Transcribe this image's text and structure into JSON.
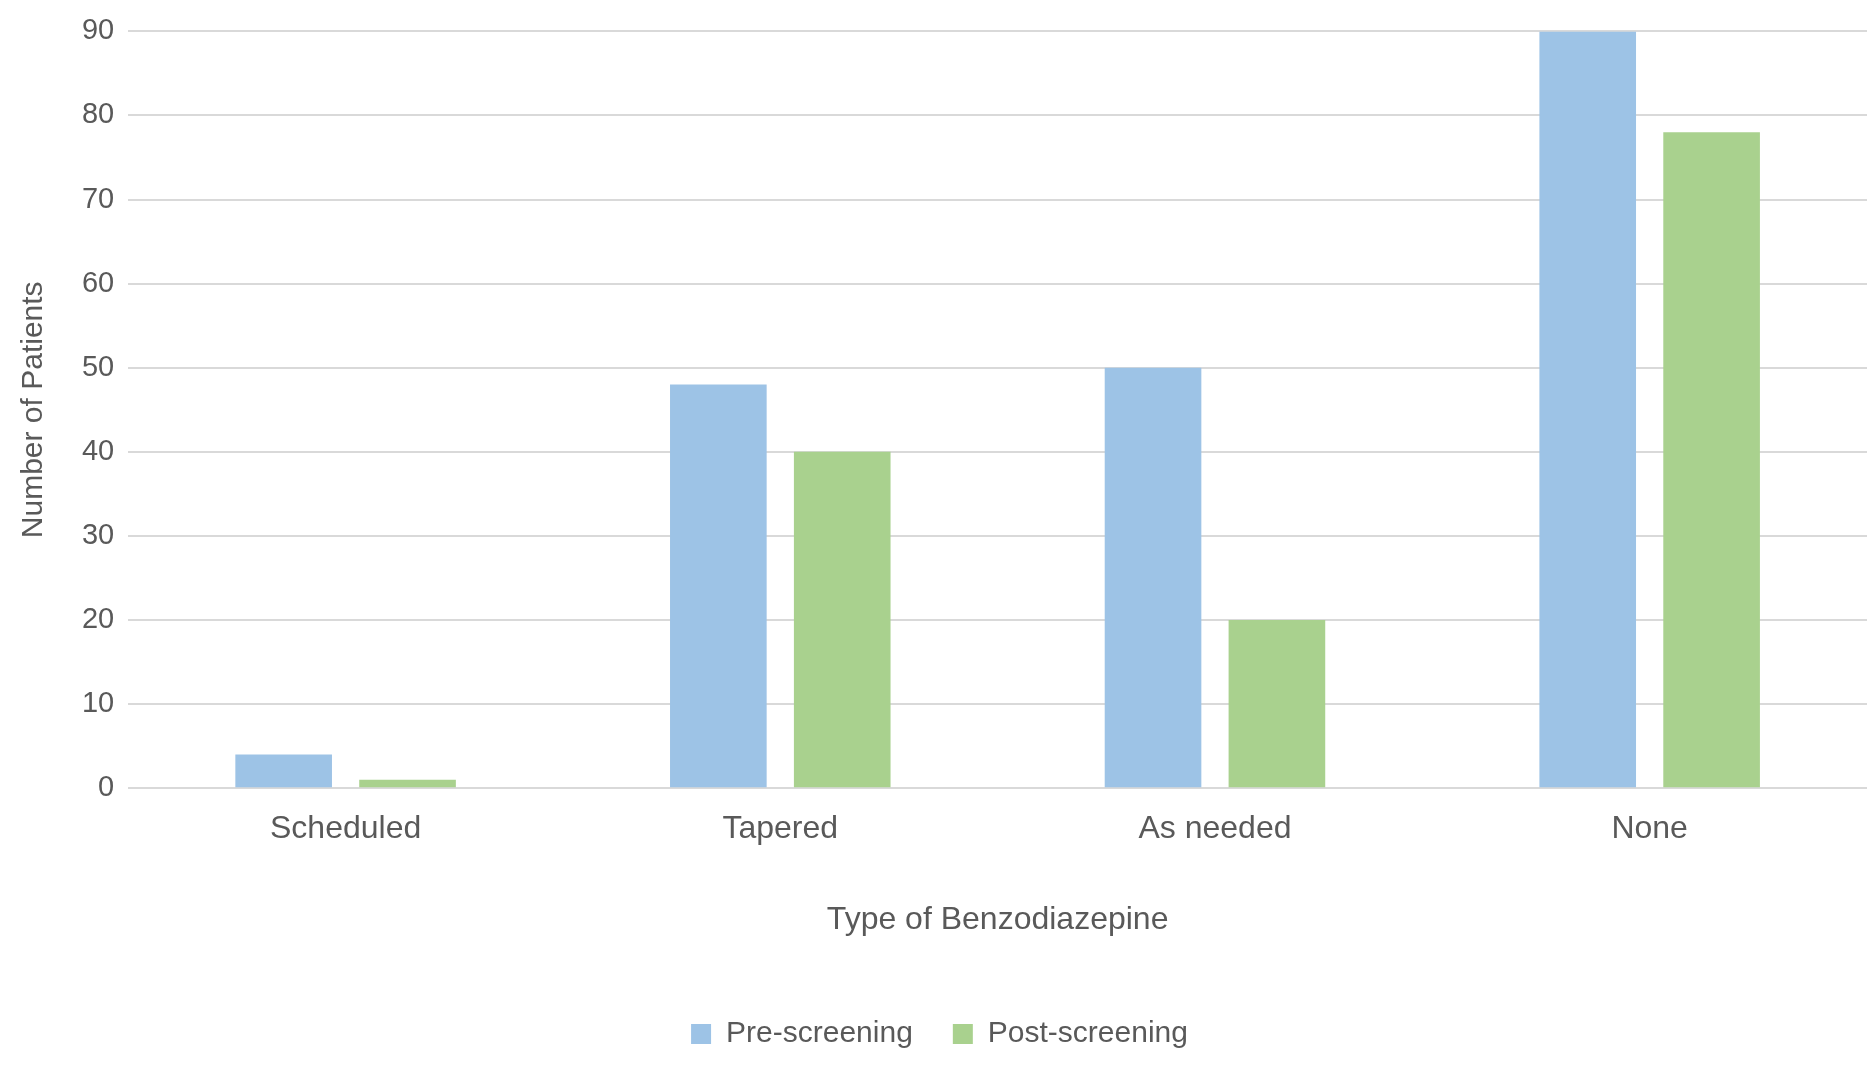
{
  "chart_data": {
    "type": "bar",
    "xlabel": "Type of Benzodiazepine",
    "ylabel": "Number of Patients",
    "categories": [
      "Scheduled",
      "Tapered",
      "As needed",
      "None"
    ],
    "series": [
      {
        "name": "Pre-screening",
        "color": "#9dc3e6",
        "values": [
          4,
          48,
          50,
          90
        ]
      },
      {
        "name": "Post-screening",
        "color": "#a9d18e",
        "values": [
          1,
          40,
          20,
          78
        ]
      }
    ],
    "ylim": [
      0,
      90
    ],
    "yticks": [
      0,
      10,
      20,
      30,
      40,
      50,
      60,
      70,
      80,
      90
    ],
    "grid": "y",
    "legend": "bottom"
  }
}
